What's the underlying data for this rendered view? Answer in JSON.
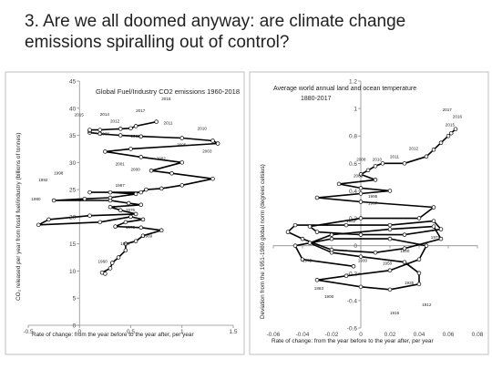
{
  "slide": {
    "title_line1": "3. Are we all doomed anyway: are climate change",
    "title_line2": "emissions spiralling out of control?"
  },
  "chart_data": [
    {
      "type": "scatter",
      "style": "connected-scatter",
      "title": "Global Fuel/Industry CO2 emissions 1960-2018",
      "xlabel": "Rate of change: from the year before to the year after, per year",
      "ylabel": "CO₂ released per year from fossil fuel/industry (billions of tonnes)",
      "xlim": [
        -0.5,
        1.5
      ],
      "ylim": [
        0,
        45
      ],
      "xticks": [
        "-0.5",
        "0",
        "0.5",
        "1",
        "1.5"
      ],
      "yticks": [
        "0",
        "5",
        "10",
        "15",
        "20",
        "25",
        "30",
        "35",
        "40",
        "45"
      ],
      "grid": false,
      "points": [
        [
          0.25,
          9.5
        ],
        [
          0.22,
          9.7
        ],
        [
          0.3,
          10.5
        ],
        [
          0.32,
          11.5
        ],
        [
          0.38,
          12.5
        ],
        [
          0.45,
          13.8
        ],
        [
          0.45,
          15.0
        ],
        [
          0.55,
          15.5
        ],
        [
          0.62,
          16.5
        ],
        [
          0.8,
          17.5
        ],
        [
          0.6,
          18.0
        ],
        [
          0.35,
          18.2
        ],
        [
          0.45,
          19.0
        ],
        [
          0.62,
          19.5
        ],
        [
          0.5,
          20.0
        ],
        [
          0.2,
          19.0
        ],
        [
          -0.4,
          18.5
        ],
        [
          -0.3,
          19.5
        ],
        [
          0.1,
          20.2
        ],
        [
          0.55,
          20.5
        ],
        [
          0.4,
          21.2
        ],
        [
          0.3,
          21.8
        ],
        [
          0.6,
          22.2
        ],
        [
          0.48,
          22.5
        ],
        [
          0.3,
          23.0
        ],
        [
          -0.25,
          23.0
        ],
        [
          0.05,
          23.3
        ],
        [
          0.3,
          23.5
        ],
        [
          0.55,
          24.2
        ],
        [
          0.3,
          24.5
        ],
        [
          0.1,
          24.5
        ],
        [
          0.6,
          24.5
        ],
        [
          0.65,
          25.0
        ],
        [
          0.8,
          25.2
        ],
        [
          1.0,
          25.8
        ],
        [
          1.3,
          27.0
        ],
        [
          0.9,
          28.0
        ],
        [
          0.7,
          28.5
        ],
        [
          1.0,
          30.0
        ],
        [
          0.6,
          31.0
        ],
        [
          0.25,
          32.0
        ],
        [
          0.5,
          32.5
        ],
        [
          1.35,
          33.5
        ],
        [
          1.3,
          34.0
        ],
        [
          1.0,
          34.5
        ],
        [
          0.6,
          34.8
        ],
        [
          0.4,
          35.0
        ],
        [
          0.2,
          35.3
        ],
        [
          0.1,
          35.5
        ],
        [
          0.1,
          35.8
        ],
        [
          0.1,
          36.0
        ],
        [
          0.2,
          36.0
        ],
        [
          0.4,
          36.2
        ],
        [
          0.5,
          36.3
        ],
        [
          0.55,
          36.7
        ],
        [
          0.75,
          37.5
        ]
      ],
      "point_labels": [
        {
          "text": "1960",
          "x": 0.18,
          "y": 11.5
        },
        {
          "text": "1963",
          "x": 0.4,
          "y": 14.8
        },
        {
          "text": "1969",
          "x": 0.62,
          "y": 16.2
        },
        {
          "text": "1970",
          "x": 0.45,
          "y": 17.8
        },
        {
          "text": "1976",
          "x": 0.45,
          "y": 21.0
        },
        {
          "text": "1980",
          "x": -0.47,
          "y": 23.0
        },
        {
          "text": "1987",
          "x": 0.35,
          "y": 25.5
        },
        {
          "text": "1992",
          "x": -0.4,
          "y": 26.5
        },
        {
          "text": "1998",
          "x": -0.25,
          "y": 27.8
        },
        {
          "text": "2000",
          "x": 0.5,
          "y": 28.5
        },
        {
          "text": "2001",
          "x": 0.35,
          "y": 29.5
        },
        {
          "text": "2002",
          "x": 0.75,
          "y": 30.5
        },
        {
          "text": "2003",
          "x": 1.2,
          "y": 31.8
        },
        {
          "text": "2005",
          "x": 0.95,
          "y": 33.0
        },
        {
          "text": "2008",
          "x": 0.2,
          "y": 35.0
        },
        {
          "text": "2009",
          "x": 0.5,
          "y": 34.6
        },
        {
          "text": "2010",
          "x": 1.15,
          "y": 36.0
        },
        {
          "text": "2011",
          "x": 0.82,
          "y": 37.0
        },
        {
          "text": "2012",
          "x": 0.3,
          "y": 37.4
        },
        {
          "text": "2014",
          "x": 0.2,
          "y": 38.6
        },
        {
          "text": "2015",
          "x": -0.05,
          "y": 38.5
        },
        {
          "text": "2017",
          "x": 0.55,
          "y": 39.3
        },
        {
          "text": "2018",
          "x": 0.8,
          "y": 41.5
        }
      ]
    },
    {
      "type": "scatter",
      "style": "connected-scatter",
      "title": "Average world annual land and ocean temperature",
      "subtitle": "1880-2017",
      "xlabel": "Rate of change: from the year before to the year after, per year",
      "ylabel": "Deviation from the 1951-1980 global norm (degrees celsius)",
      "xlim": [
        -0.06,
        0.08
      ],
      "ylim": [
        -0.6,
        1.2
      ],
      "xticks": [
        "-0.06",
        "-0.04",
        "-0.02",
        "0",
        "0.02",
        "0.04",
        "0.06",
        "0.08"
      ],
      "yticks": [
        "-0.6",
        "-0.4",
        "-0.2",
        "0",
        "0.2",
        "0.4",
        "0.6",
        "0.8",
        "1",
        "1.2"
      ],
      "grid": false,
      "points": [
        [
          -0.005,
          -0.15
        ],
        [
          -0.04,
          -0.1
        ],
        [
          -0.045,
          0.0
        ],
        [
          -0.02,
          0.05
        ],
        [
          0.02,
          0.05
        ],
        [
          0.045,
          0.0
        ],
        [
          0.04,
          -0.1
        ],
        [
          0.02,
          -0.18
        ],
        [
          -0.01,
          -0.22
        ],
        [
          -0.03,
          -0.25
        ],
        [
          0.0,
          -0.3
        ],
        [
          0.02,
          -0.32
        ],
        [
          0.04,
          -0.28
        ],
        [
          0.04,
          -0.2
        ],
        [
          0.03,
          -0.12
        ],
        [
          0.0,
          -0.08
        ],
        [
          -0.02,
          -0.05
        ],
        [
          -0.035,
          0.02
        ],
        [
          -0.02,
          0.08
        ],
        [
          0.02,
          0.12
        ],
        [
          0.05,
          0.14
        ],
        [
          0.055,
          0.05
        ],
        [
          0.03,
          -0.02
        ],
        [
          0.01,
          -0.05
        ],
        [
          -0.02,
          -0.03
        ],
        [
          -0.04,
          0.05
        ],
        [
          -0.05,
          0.1
        ],
        [
          -0.045,
          0.15
        ],
        [
          -0.01,
          0.15
        ],
        [
          0.02,
          0.15
        ],
        [
          0.05,
          0.18
        ],
        [
          0.055,
          0.12
        ],
        [
          0.03,
          0.08
        ],
        [
          0.0,
          0.08
        ],
        [
          -0.03,
          0.1
        ],
        [
          -0.035,
          0.14
        ],
        [
          0.0,
          0.2
        ],
        [
          0.04,
          0.2
        ],
        [
          0.05,
          0.28
        ],
        [
          0.0,
          0.32
        ],
        [
          -0.03,
          0.35
        ],
        [
          0.0,
          0.38
        ],
        [
          0.02,
          0.4
        ],
        [
          0.0,
          0.42
        ],
        [
          -0.015,
          0.45
        ],
        [
          0.01,
          0.48
        ],
        [
          0.0,
          0.52
        ],
        [
          0.005,
          0.55
        ],
        [
          0.01,
          0.58
        ],
        [
          0.015,
          0.6
        ],
        [
          0.03,
          0.6
        ],
        [
          0.045,
          0.65
        ],
        [
          0.05,
          0.7
        ],
        [
          0.055,
          0.75
        ],
        [
          0.06,
          0.8
        ],
        [
          0.062,
          0.82
        ],
        [
          0.065,
          0.85
        ]
      ],
      "point_labels": [
        {
          "text": "2017",
          "x": 0.056,
          "y": 0.98
        },
        {
          "text": "2016",
          "x": 0.063,
          "y": 0.93
        },
        {
          "text": "2015",
          "x": 0.058,
          "y": 0.87
        },
        {
          "text": "2012",
          "x": 0.033,
          "y": 0.7
        },
        {
          "text": "2011",
          "x": 0.02,
          "y": 0.64
        },
        {
          "text": "2010",
          "x": 0.008,
          "y": 0.62
        },
        {
          "text": "2008",
          "x": -0.003,
          "y": 0.62
        },
        {
          "text": "2000",
          "x": -0.005,
          "y": 0.5
        },
        {
          "text": "1995",
          "x": 0.005,
          "y": 0.35
        },
        {
          "text": "1987",
          "x": 0.005,
          "y": 0.3
        },
        {
          "text": "1982",
          "x": -0.01,
          "y": 0.17
        },
        {
          "text": "1978",
          "x": 0.048,
          "y": 0.05
        },
        {
          "text": "1940",
          "x": 0.027,
          "y": -0.05
        },
        {
          "text": "1945",
          "x": -0.04,
          "y": -0.12
        },
        {
          "text": "1930",
          "x": -0.002,
          "y": -0.12
        },
        {
          "text": "1950",
          "x": 0.015,
          "y": -0.14
        },
        {
          "text": "1935",
          "x": 0.03,
          "y": -0.28
        },
        {
          "text": "1883",
          "x": -0.032,
          "y": -0.32
        },
        {
          "text": "1900",
          "x": -0.025,
          "y": -0.38
        },
        {
          "text": "1912",
          "x": 0.042,
          "y": -0.44
        },
        {
          "text": "1916",
          "x": 0.02,
          "y": -0.5
        }
      ]
    }
  ]
}
